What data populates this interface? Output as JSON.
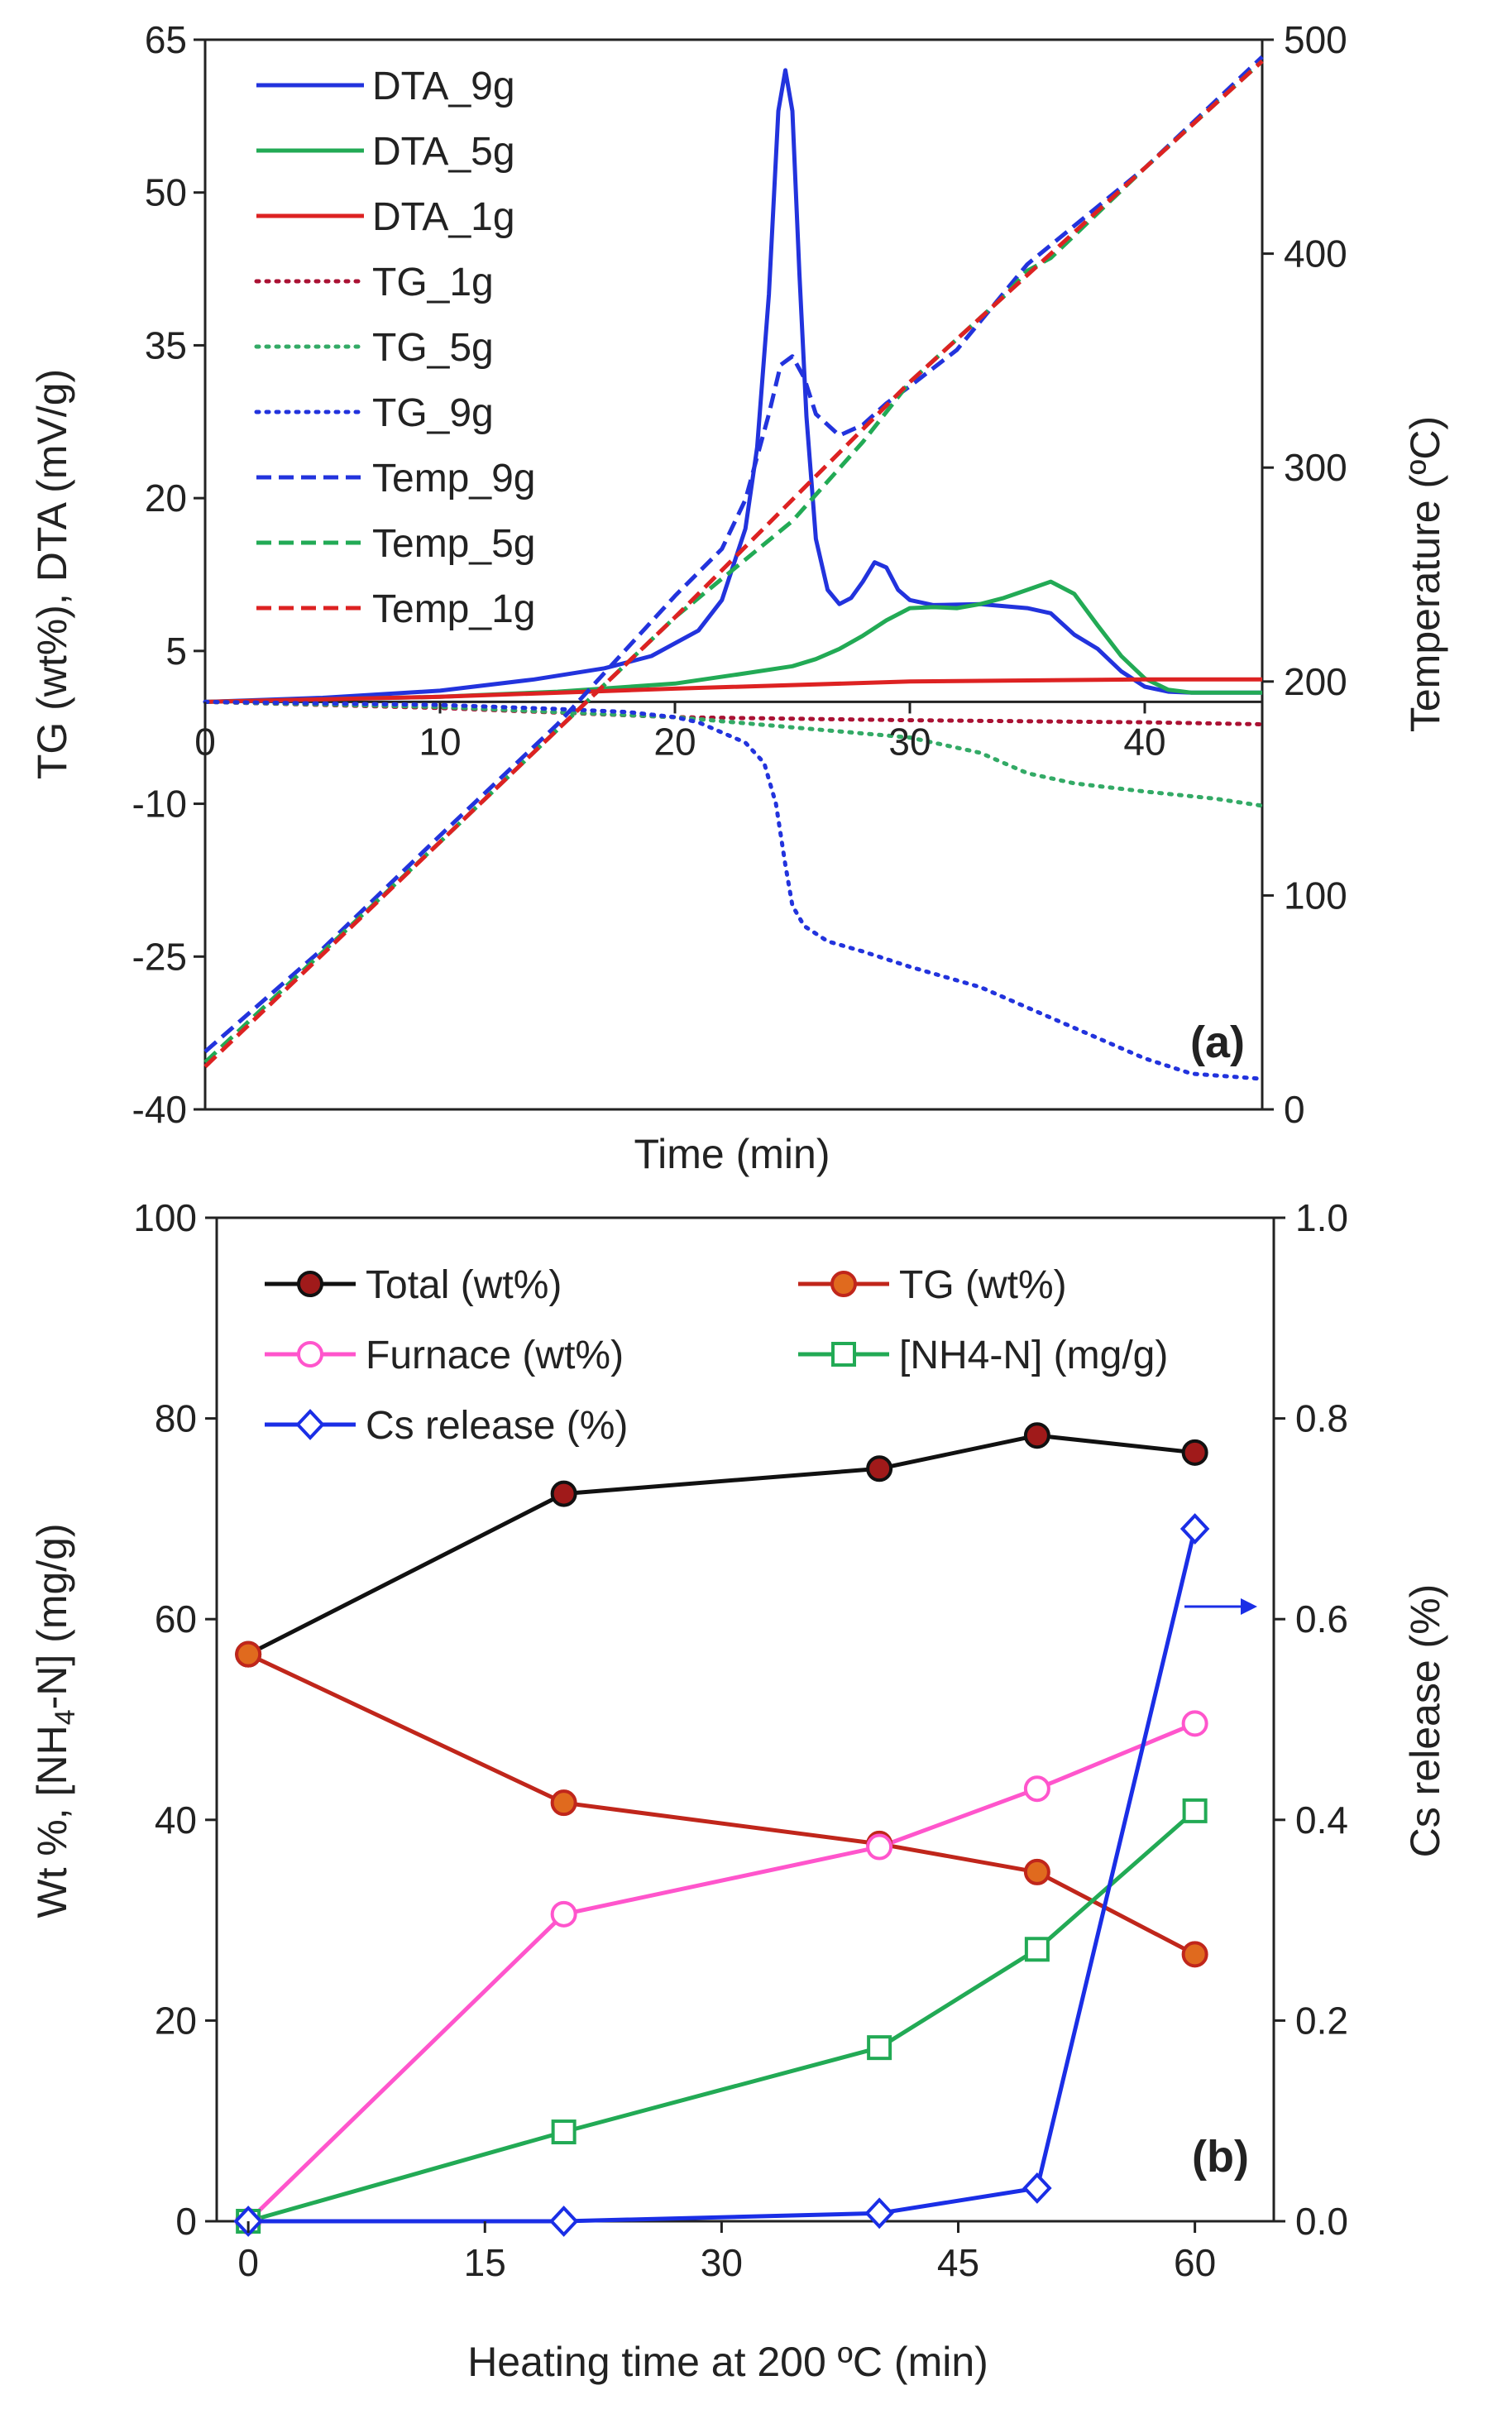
{
  "chart_data": [
    {
      "id": "a",
      "type": "line",
      "panel_label": "(a)",
      "xlabel": "Time (min)",
      "ylabel": "TG (wt%), DTA (mV/g)",
      "y2label": "Temperature (ºC)",
      "xlim": [
        0,
        45
      ],
      "ylim": [
        -40,
        65
      ],
      "y2lim": [
        0,
        500
      ],
      "xticks": [
        0,
        10,
        20,
        30,
        40
      ],
      "yticks": [
        -40,
        -25,
        -10,
        5,
        20,
        35,
        50,
        65
      ],
      "y2ticks": [
        0,
        100,
        200,
        300,
        400,
        500
      ],
      "legend_position": "top-left",
      "series": [
        {
          "name": "DTA_9g",
          "color": "#2233dd",
          "style": "solid",
          "axis": "y",
          "x": [
            0,
            5,
            10,
            14,
            17,
            19,
            21,
            22,
            23,
            23.5,
            24,
            24.4,
            24.7,
            25,
            25.3,
            25.6,
            26,
            26.5,
            27,
            27.5,
            28,
            28.5,
            29,
            29.5,
            30,
            31,
            33,
            35,
            36,
            37,
            38,
            39,
            40,
            41,
            42,
            43,
            44,
            45
          ],
          "y": [
            0,
            0.4,
            1.1,
            2.2,
            3.3,
            4.5,
            7,
            10,
            17,
            25,
            40,
            58,
            62,
            58,
            42,
            28,
            16,
            11,
            9.6,
            10.2,
            11.8,
            13.7,
            13.2,
            11,
            10,
            9.5,
            9.6,
            9.2,
            8.7,
            6.6,
            5.2,
            3,
            1.5,
            1,
            0.9,
            0.9,
            0.9,
            0.9
          ]
        },
        {
          "name": "DTA_5g",
          "color": "#22aa55",
          "style": "solid",
          "axis": "y",
          "x": [
            0,
            10,
            15,
            20,
            23,
            25,
            26,
            27,
            28,
            29,
            30,
            31,
            32,
            33,
            34,
            35,
            36,
            37,
            38,
            39,
            40,
            41,
            42,
            45
          ],
          "y": [
            0,
            0.5,
            1,
            1.8,
            2.8,
            3.5,
            4.2,
            5.2,
            6.5,
            8,
            9.2,
            9.3,
            9.2,
            9.6,
            10.2,
            11,
            11.8,
            10.6,
            7.5,
            4.5,
            2.3,
            1.2,
            0.9,
            0.9
          ]
        },
        {
          "name": "DTA_1g",
          "color": "#dd2222",
          "style": "solid",
          "axis": "y",
          "x": [
            0,
            10,
            20,
            30,
            40,
            45
          ],
          "y": [
            0,
            0.5,
            1.3,
            2,
            2.2,
            2.2
          ]
        },
        {
          "name": "TG_1g",
          "color": "#aa1133",
          "style": "dotted",
          "axis": "y",
          "x": [
            0,
            10,
            20,
            30,
            40,
            45
          ],
          "y": [
            0,
            -0.6,
            -1.5,
            -1.8,
            -2,
            -2.2
          ]
        },
        {
          "name": "TG_5g",
          "color": "#33aa66",
          "style": "dotted",
          "axis": "y",
          "x": [
            0,
            10,
            20,
            25,
            30,
            33,
            35,
            37,
            40,
            43,
            45
          ],
          "y": [
            0,
            -0.5,
            -1.5,
            -2.5,
            -3.5,
            -5,
            -7,
            -8,
            -8.8,
            -9.5,
            -10.2
          ]
        },
        {
          "name": "TG_9g",
          "color": "#2233dd",
          "style": "dotted",
          "axis": "y",
          "x": [
            0,
            10,
            15,
            18,
            20,
            21,
            22,
            23,
            23.8,
            24.3,
            24.7,
            25,
            25.5,
            26.5,
            28,
            30,
            33,
            36,
            38,
            40,
            42,
            45
          ],
          "y": [
            0,
            -0.3,
            -0.7,
            -1,
            -1.5,
            -2,
            -3,
            -4,
            -6,
            -10,
            -16,
            -20,
            -22,
            -23.5,
            -24.5,
            -26,
            -28,
            -31,
            -33,
            -35,
            -36.5,
            -37
          ]
        },
        {
          "name": "Temp_9g",
          "color": "#2233dd",
          "style": "dashed",
          "axis": "y2",
          "x": [
            0,
            5,
            10,
            15,
            20,
            22,
            23,
            24,
            24.5,
            25,
            25.5,
            26,
            27,
            28,
            29,
            30,
            32,
            35,
            40,
            45
          ],
          "y": [
            27,
            75,
            128,
            180,
            240,
            262,
            285,
            325,
            348,
            352,
            342,
            325,
            315,
            320,
            330,
            338,
            355,
            395,
            440,
            492
          ]
        },
        {
          "name": "Temp_5g",
          "color": "#22aa55",
          "style": "dashed",
          "axis": "y2",
          "x": [
            0,
            10,
            20,
            25,
            28,
            30,
            32,
            34,
            35,
            36,
            40,
            45
          ],
          "y": [
            22,
            125,
            230,
            275,
            312,
            340,
            360,
            380,
            392,
            398,
            440,
            490
          ]
        },
        {
          "name": "Temp_1g",
          "color": "#dd2222",
          "style": "dashed",
          "axis": "y2",
          "x": [
            0,
            10,
            20,
            30,
            40,
            45
          ],
          "y": [
            20,
            125,
            230,
            340,
            440,
            490
          ]
        }
      ]
    },
    {
      "id": "b",
      "type": "line",
      "panel_label": "(b)",
      "xlabel": "Heating time at 200 ºC (min)",
      "ylabel_parts": [
        "Wt %, [NH",
        "4",
        "-N] (mg/g)"
      ],
      "y2label": "Cs release (%)",
      "xlim": [
        -2,
        65
      ],
      "ylim": [
        0,
        100
      ],
      "y2lim": [
        0,
        1
      ],
      "xticks": [
        0,
        15,
        30,
        45,
        60
      ],
      "yticks": [
        0,
        20,
        40,
        60,
        80,
        100
      ],
      "y2ticks": [
        "0.0",
        "0.2",
        "0.4",
        "0.6",
        "0.8",
        "1.0"
      ],
      "legend_position": "top",
      "x": [
        0,
        20,
        40,
        50,
        60
      ],
      "series": [
        {
          "name": "Total (wt%)",
          "color": "#111111",
          "fill": "#a01a1a",
          "marker": "circle",
          "axis": "y",
          "values": [
            56.5,
            72.5,
            75,
            78.3,
            76.6
          ]
        },
        {
          "name": "TG (wt%)",
          "color": "#c0261b",
          "fill": "#e06a1e",
          "marker": "circle",
          "axis": "y",
          "values": [
            56.5,
            41.7,
            37.6,
            34.8,
            26.6
          ]
        },
        {
          "name": "Furnace (wt%)",
          "color": "#ff55cc",
          "fill": "#ffffff",
          "marker": "circle",
          "axis": "y",
          "values": [
            0,
            30.6,
            37.3,
            43.1,
            49.6
          ]
        },
        {
          "name": "[NH4-N] (mg/g)",
          "color": "#22aa55",
          "fill": "#ffffff",
          "marker": "square",
          "axis": "y",
          "values": [
            0,
            8.9,
            17.3,
            27.1,
            40.9
          ]
        },
        {
          "name": "Cs release (%)",
          "color": "#1a2ee6",
          "fill": "#ffffff",
          "marker": "diamond",
          "axis": "y2",
          "values": [
            0,
            0,
            0.008,
            0.033,
            0.69
          ]
        }
      ]
    }
  ]
}
